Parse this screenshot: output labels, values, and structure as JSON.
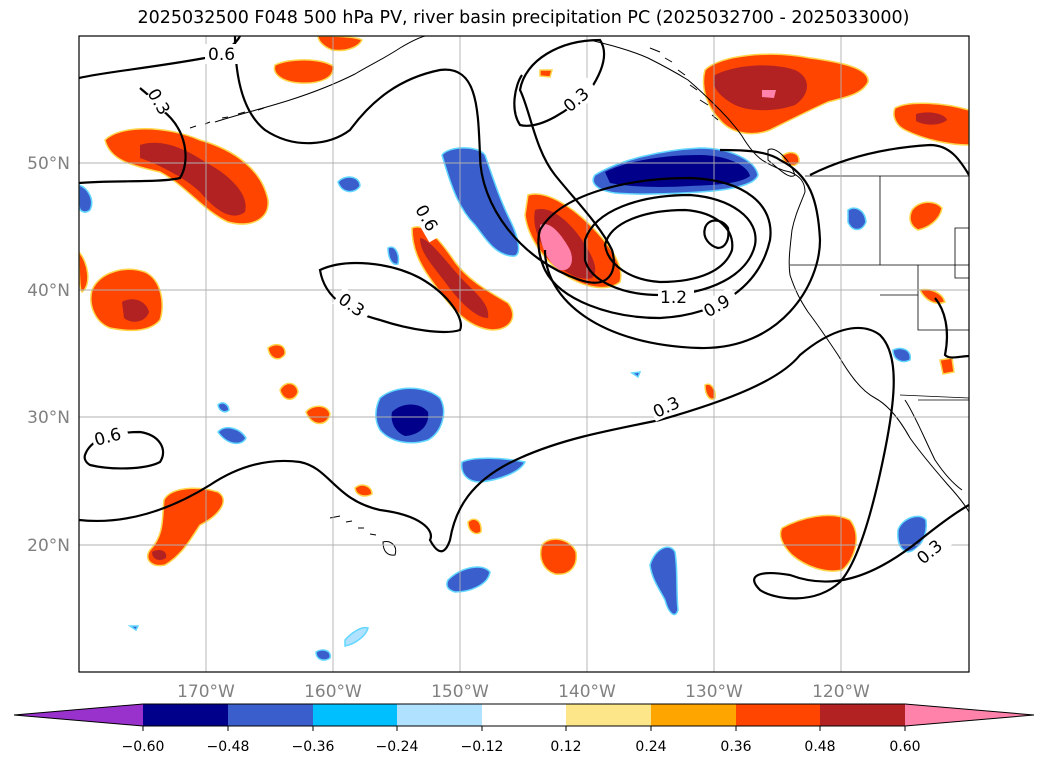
{
  "title": "2025032500 F048 500 hPa PV, river basin precipitation PC (2025032700 - 2025033000)",
  "lon_labels": [
    "170°W",
    "160°W",
    "150°W",
    "140°W",
    "130°W",
    "120°W"
  ],
  "lat_labels": [
    "50°N",
    "40°N",
    "30°N",
    "20°N"
  ],
  "contour_labels": [
    "0.6",
    "0.3",
    "0.3",
    "0.6",
    "0.3",
    "1.2",
    "0.9",
    "0.3",
    "0.6",
    "0.3"
  ],
  "colorbar": {
    "ticks": [
      "−0.60",
      "−0.48",
      "−0.36",
      "−0.24",
      "−0.12",
      "0.12",
      "0.24",
      "0.36",
      "0.48",
      "0.60"
    ],
    "colors": [
      "#9932cc",
      "#00008b",
      "#3a5fcd",
      "#00bfff",
      "#b0e2ff",
      "#ffffff",
      "#fde68a",
      "#ffa500",
      "#ff4500",
      "#b22222",
      "#ff82ab"
    ]
  }
}
